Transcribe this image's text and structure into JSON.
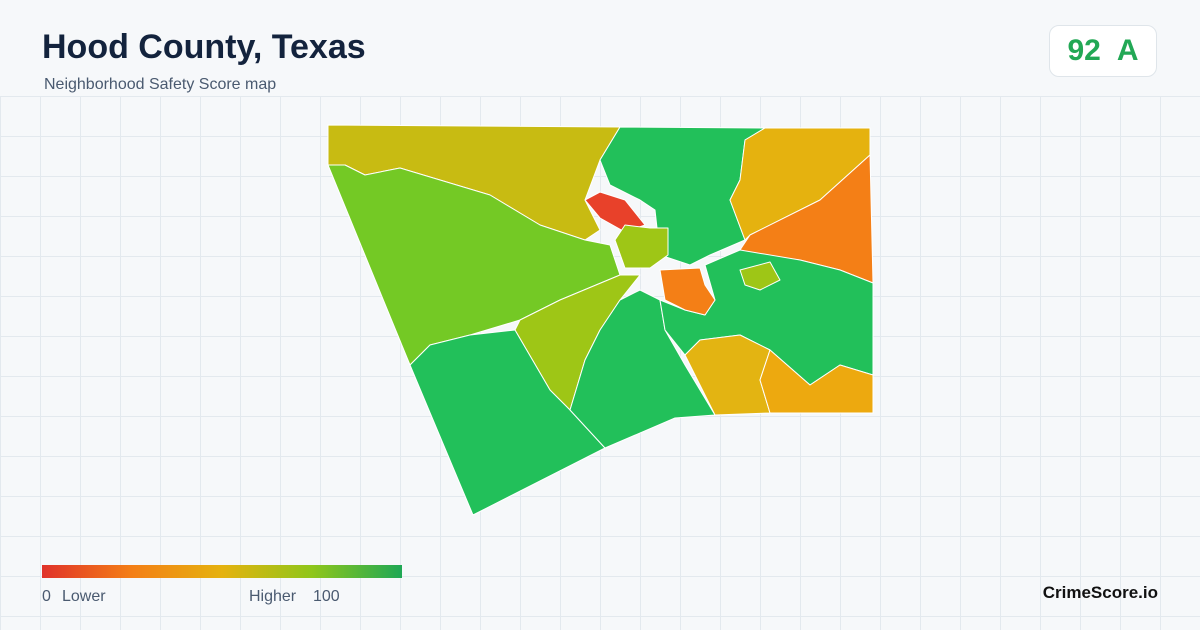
{
  "header": {
    "title": "Hood County, Texas",
    "subtitle": "Neighborhood Safety Score map",
    "score": 92,
    "grade": "A"
  },
  "legend": {
    "min": 0,
    "low_label": "Lower",
    "high_label": "Higher",
    "max": 100
  },
  "footer": {
    "brand": "CrimeScore.io"
  }
}
